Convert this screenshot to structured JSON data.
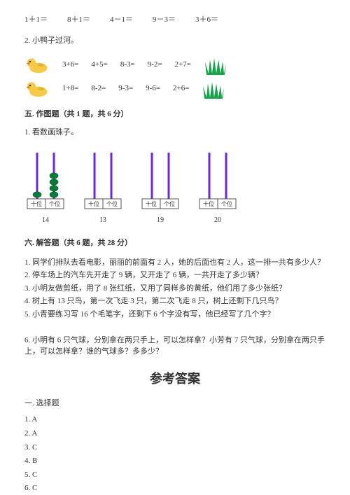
{
  "colors": {
    "text": "#333333",
    "duck_body": "#f7c948",
    "duck_beak": "#d97706",
    "grass": "#16a34a",
    "abacus_stick": "#6d28d9",
    "abacus_base": "#555555",
    "bead_fill": "#0b7a3b",
    "bead_stroke": "#065f2a"
  },
  "arith": {
    "a": "1＋1＝",
    "b": "8＋1＝",
    "c": "4－1＝",
    "d": "9－3＝",
    "e": "3＋6＝"
  },
  "q2_title": "2. 小鸭子过河。",
  "duck_rows": [
    {
      "c1": "3+6=",
      "c2": "4+5=",
      "c3": "8-3=",
      "c4": "9-2=",
      "c5": "2+7="
    },
    {
      "c1": "1+8=",
      "c2": "8-2=",
      "c3": "9-3=",
      "c4": "9-6=",
      "c5": "2+6="
    }
  ],
  "sec5": {
    "heading": "五. 作图题（共 1 题，共 6 分）",
    "q": "1. 看数画珠子。"
  },
  "abacus": {
    "tens_label": "十位",
    "ones_label": "个位",
    "items": [
      {
        "num": "14",
        "tens_beads": 1,
        "ones_beads": 4
      },
      {
        "num": "13",
        "tens_beads": 0,
        "ones_beads": 0
      },
      {
        "num": "19",
        "tens_beads": 0,
        "ones_beads": 0
      },
      {
        "num": "20",
        "tens_beads": 0,
        "ones_beads": 0
      }
    ]
  },
  "sec6": {
    "heading": "六. 解答题（共 6 题，共 28 分）",
    "problems": [
      "1. 同学们排队去看电影，丽丽的前面有 2 人，她的后面也有 2 人，这一排一共有多少人？",
      "2. 停车场上的汽车先开走了 9 辆，又开走了 6 辆，一共开走了多少辆？",
      "3. 小明友做剪纸，用了 8 张红纸，又用了同样多的黄纸，他们用了多少张纸？",
      "4. 树上有 13 只鸟，第一次飞走 3 只，第二次飞走 8 只，树上还剩下几只鸟？",
      "5. 小青要练习写 16 个毛笔字，还剩下 6 个字没有写，他已经写了几个字？",
      "",
      "6. 小明有 6 只气球，分别拿在两只手上，可以怎样拿？小芳有 7 只气球，分别拿在两只手上，可以怎样拿？谁的气球多？多多少？"
    ]
  },
  "answers": {
    "title": "参考答案",
    "sub": "一. 选择题",
    "list": [
      "1. A",
      "2. A",
      "3. C",
      "4. B",
      "5. C",
      "6. C"
    ]
  }
}
